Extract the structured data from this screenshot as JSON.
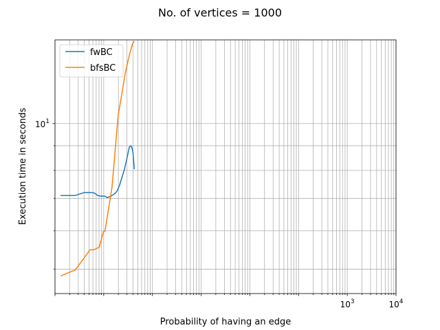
{
  "chart_data": {
    "type": "line",
    "title": "No. of vertices = 1000",
    "xlabel": "Probability of having an edge",
    "ylabel": "Execution time in seconds",
    "x_scale": "log",
    "y_scale": "log",
    "xlim": [
      0.001,
      10000
    ],
    "ylim": [
      4.45,
      14.9
    ],
    "x_tick_labels": [
      {
        "value": 1000,
        "label": "10",
        "exp": "3"
      },
      {
        "value": 10000,
        "label": "10",
        "exp": "4"
      }
    ],
    "y_tick_labels": [
      {
        "value": 10,
        "label": "10",
        "exp": "1"
      }
    ],
    "grid": true,
    "legend_position": "upper-left",
    "series": [
      {
        "name": "fwBC",
        "color": "#1f77b4",
        "x": [
          0.0013,
          0.0026,
          0.004,
          0.0056,
          0.0065,
          0.0075,
          0.0088,
          0.0105,
          0.0112,
          0.012,
          0.0145,
          0.0168,
          0.0188,
          0.0212,
          0.0238,
          0.0267,
          0.0298,
          0.0335,
          0.0362,
          0.038,
          0.0399,
          0.0425
        ],
        "y": [
          7.1,
          7.1,
          7.2,
          7.2,
          7.18,
          7.1,
          7.08,
          7.08,
          7.05,
          7.03,
          7.09,
          7.16,
          7.25,
          7.46,
          7.75,
          8.05,
          8.45,
          8.94,
          9.0,
          8.92,
          8.7,
          8.05
        ]
      },
      {
        "name": "bfsBC",
        "color": "#ff7f0e",
        "x": [
          0.0013,
          0.0026,
          0.004,
          0.0052,
          0.0062,
          0.0081,
          0.0099,
          0.0106,
          0.0115,
          0.0148,
          0.0175,
          0.0198,
          0.0235,
          0.0272,
          0.0305,
          0.0345,
          0.0385,
          0.0412,
          0.0425
        ],
        "y": [
          4.84,
          4.98,
          5.28,
          5.48,
          5.48,
          5.55,
          5.98,
          5.98,
          6.3,
          7.38,
          9.0,
          10.4,
          11.5,
          12.6,
          13.3,
          14.0,
          14.55,
          14.75,
          14.8
        ]
      }
    ]
  }
}
